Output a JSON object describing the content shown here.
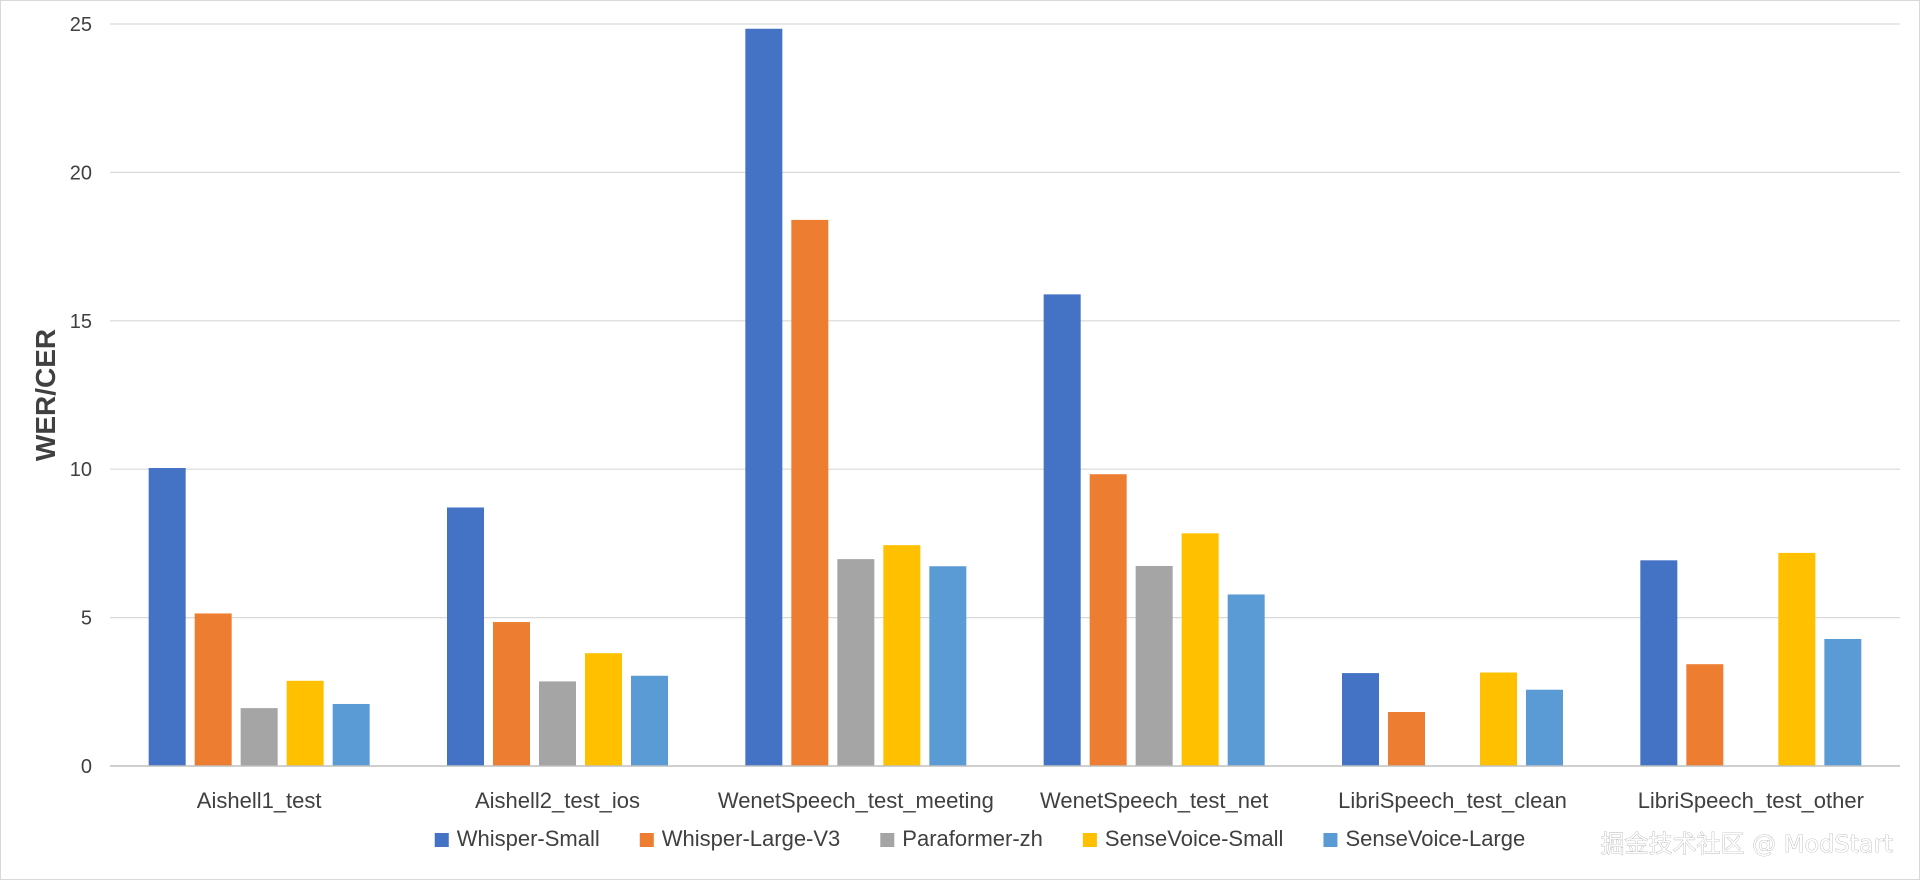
{
  "chart_data": {
    "type": "bar",
    "title": "",
    "xlabel": "",
    "ylabel": "WER/CER",
    "ylim": [
      0,
      25
    ],
    "yticks": [
      0,
      5,
      10,
      15,
      20,
      25
    ],
    "grid": "horizontal",
    "legend_position": "bottom",
    "categories": [
      "Aishell1_test",
      "Aishell2_test_ios",
      "WenetSpeech_test_meeting",
      "WenetSpeech_test_net",
      "LibriSpeech_test_clean",
      "LibriSpeech_test_other"
    ],
    "series": [
      {
        "name": "Whisper-Small",
        "color": "#4472C4",
        "values": [
          10.04,
          8.71,
          24.84,
          15.89,
          3.13,
          6.93
        ]
      },
      {
        "name": "Whisper-Large-V3",
        "color": "#ED7D31",
        "values": [
          5.14,
          4.85,
          18.4,
          9.83,
          1.82,
          3.43
        ]
      },
      {
        "name": "Paraformer-zh",
        "color": "#A5A5A5",
        "values": [
          1.95,
          2.85,
          6.97,
          6.74,
          null,
          null
        ]
      },
      {
        "name": "SenseVoice-Small",
        "color": "#FFC000",
        "values": [
          2.87,
          3.8,
          7.44,
          7.84,
          3.15,
          7.18
        ]
      },
      {
        "name": "SenseVoice-Large",
        "color": "#5B9BD5",
        "values": [
          2.09,
          3.04,
          6.73,
          5.78,
          2.57,
          4.28
        ]
      }
    ]
  },
  "watermark": "掘金技术社区 @ ModStart"
}
